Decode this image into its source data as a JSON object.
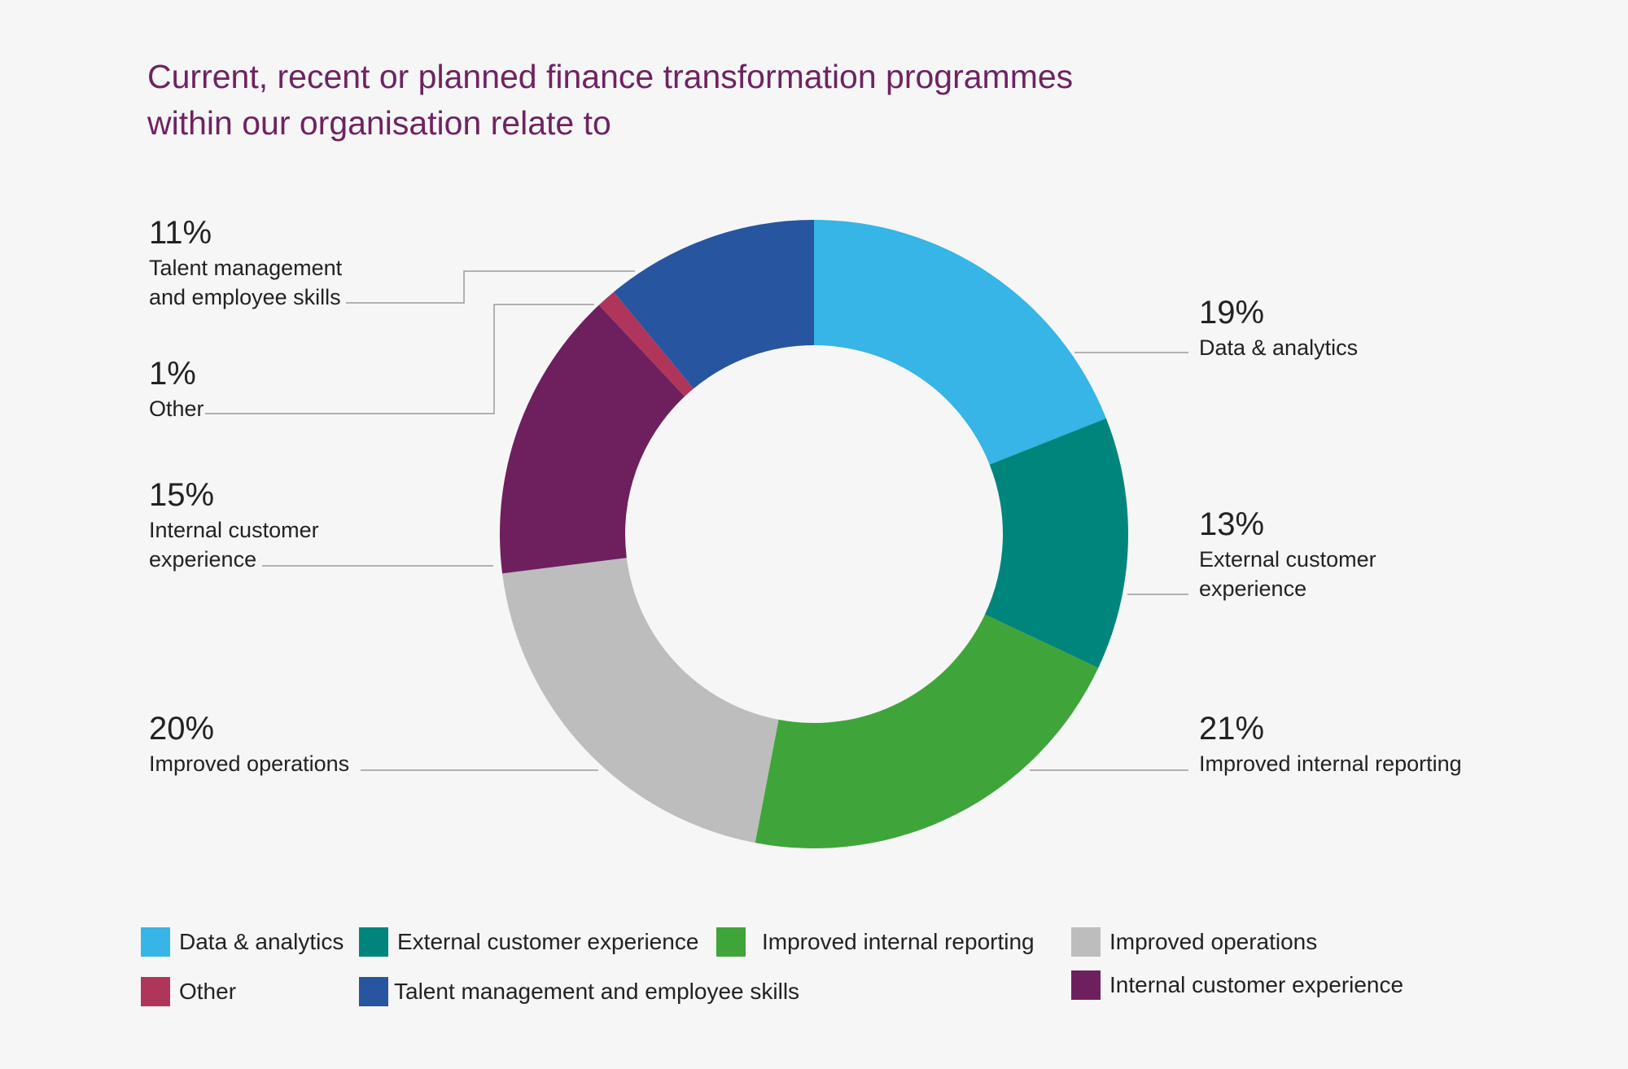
{
  "title": {
    "line1": "Current, recent or planned finance transformation programmes",
    "line2": "within our organisation relate to"
  },
  "colors": {
    "data_analytics": "#36b5e6",
    "external_customer_experience": "#00857c",
    "improved_internal_reporting": "#3fa53a",
    "improved_operations": "#bdbdbd",
    "internal_customer_experience": "#6e1f5e",
    "other": "#b0355a",
    "talent_management": "#27559f",
    "leader_line": "#9a9a9a"
  },
  "callouts": {
    "data_analytics": {
      "pct": "19%",
      "label_lines": [
        "Data & analytics"
      ]
    },
    "external_customer_experience": {
      "pct": "13%",
      "label_lines": [
        "External customer",
        "experience"
      ]
    },
    "improved_internal_reporting": {
      "pct": "21%",
      "label_lines": [
        "Improved internal reporting"
      ]
    },
    "improved_operations": {
      "pct": "20%",
      "label_lines": [
        "Improved operations"
      ]
    },
    "internal_customer_experience": {
      "pct": "15%",
      "label_lines": [
        "Internal customer",
        "experience"
      ]
    },
    "other": {
      "pct": "1%",
      "label_lines": [
        "Other"
      ]
    },
    "talent_management": {
      "pct": "11%",
      "label_lines": [
        "Talent management",
        "and employee skills"
      ]
    }
  },
  "legend": [
    {
      "key": "data_analytics",
      "label": "Data & analytics"
    },
    {
      "key": "external_customer_experience",
      "label": "External customer experience"
    },
    {
      "key": "improved_internal_reporting",
      "label": "Improved internal reporting"
    },
    {
      "key": "improved_operations",
      "label": "Improved operations"
    },
    {
      "key": "other",
      "label": "Other"
    },
    {
      "key": "talent_management",
      "label": "Talent management and employee skills"
    },
    {
      "key": "internal_customer_experience",
      "label": "Internal customer experience"
    }
  ],
  "chart_data": {
    "type": "pie",
    "variant": "donut",
    "title": "Current, recent or planned finance transformation programmes within our organisation relate to",
    "unit": "%",
    "start": "12 o'clock, clockwise",
    "categories": [
      "Data & analytics",
      "External customer experience",
      "Improved internal reporting",
      "Improved operations",
      "Internal customer experience",
      "Other",
      "Talent management and employee skills"
    ],
    "values": [
      19,
      13,
      21,
      20,
      15,
      1,
      11
    ],
    "colors": [
      "#36b5e6",
      "#00857c",
      "#3fa53a",
      "#bdbdbd",
      "#6e1f5e",
      "#b0355a",
      "#27559f"
    ],
    "legend": "bottom"
  }
}
